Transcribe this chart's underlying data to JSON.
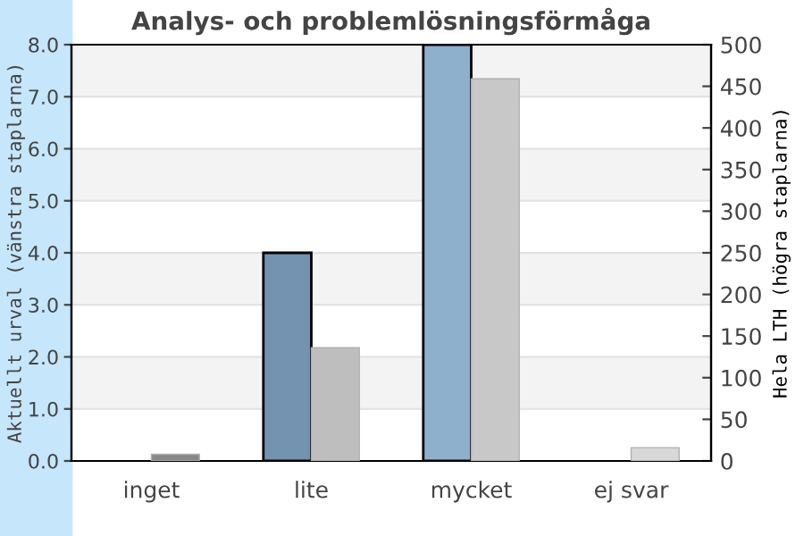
{
  "chart_data": {
    "type": "bar",
    "title": "Analys- och problemlösningsförmåga",
    "ylabel": "Aktuellt urval (vänstra staplarna)",
    "y2label": "Hela LTH (högra staplarna)",
    "categories": [
      "inget",
      "lite",
      "mycket",
      "ej svar"
    ],
    "series": [
      {
        "values": [
          0,
          4,
          8,
          0
        ],
        "colors": [
          "#7393b0",
          "#7393b0",
          "#8fb0cc",
          "#8fb0cc"
        ]
      },
      {
        "values": [
          8,
          136,
          459,
          16
        ],
        "colors": [
          "#888888",
          "#bebebe",
          "#c8c8c8",
          "#d8d8d8"
        ],
        "axis": "y2"
      }
    ],
    "ylim": [
      0,
      8
    ],
    "yticks": [
      {
        "value": 0,
        "label": "0.0"
      },
      {
        "value": 1,
        "label": "1.0"
      },
      {
        "value": 2,
        "label": "2.0"
      },
      {
        "value": 3,
        "label": "3.0"
      },
      {
        "value": 4,
        "label": "4.0"
      },
      {
        "value": 5,
        "label": "5.0"
      },
      {
        "value": 6,
        "label": "6.0"
      },
      {
        "value": 7,
        "label": "7.0"
      },
      {
        "value": 8,
        "label": "8.0"
      }
    ],
    "y2lim": [
      0,
      500
    ],
    "y2ticks": [
      0,
      50,
      100,
      150,
      200,
      250,
      300,
      350,
      400,
      450,
      500
    ],
    "grid": "y"
  }
}
